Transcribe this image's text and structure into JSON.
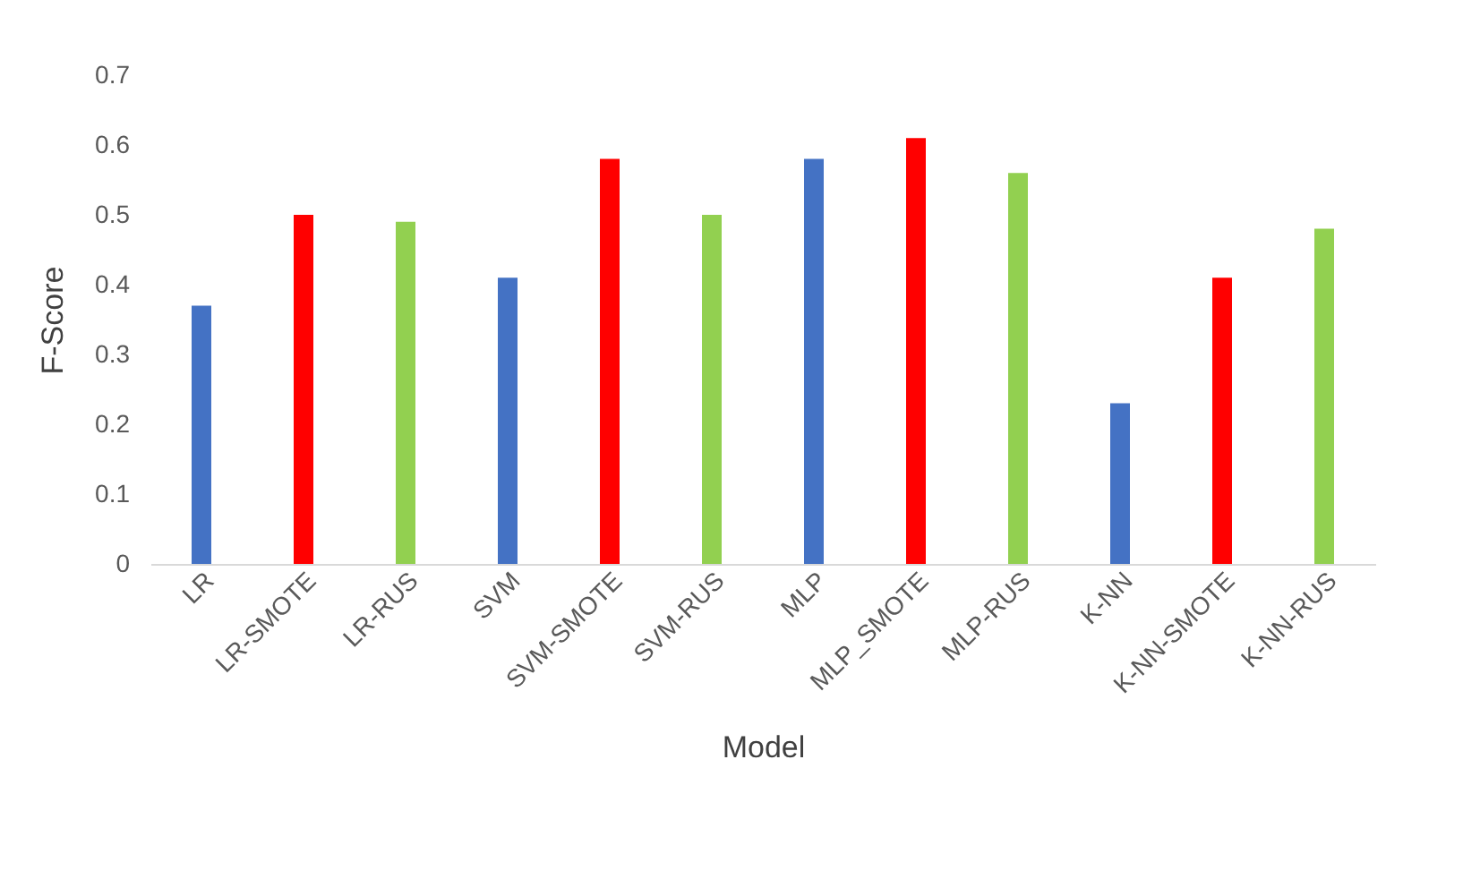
{
  "chart_data": {
    "type": "bar",
    "xlabel": "Model",
    "ylabel": "F-Score",
    "categories": [
      "LR",
      "LR-SMOTE",
      "LR-RUS",
      "SVM",
      "SVM-SMOTE",
      "SVM-RUS",
      "MLP",
      "MLP_SMOTE",
      "MLP-RUS",
      "K-NN",
      "K-NN-SMOTE",
      "K-NN-RUS"
    ],
    "values": [
      0.37,
      0.5,
      0.49,
      0.41,
      0.58,
      0.5,
      0.58,
      0.61,
      0.56,
      0.23,
      0.41,
      0.48
    ],
    "colors": [
      "#4472c4",
      "#ff0000",
      "#92d050",
      "#4472c4",
      "#ff0000",
      "#92d050",
      "#4472c4",
      "#ff0000",
      "#92d050",
      "#4472c4",
      "#ff0000",
      "#92d050"
    ],
    "ylim": [
      0,
      0.7
    ],
    "yticks": [
      0,
      0.1,
      0.2,
      0.3,
      0.4,
      0.5,
      0.6,
      0.7
    ],
    "grid": false,
    "legend": false
  }
}
